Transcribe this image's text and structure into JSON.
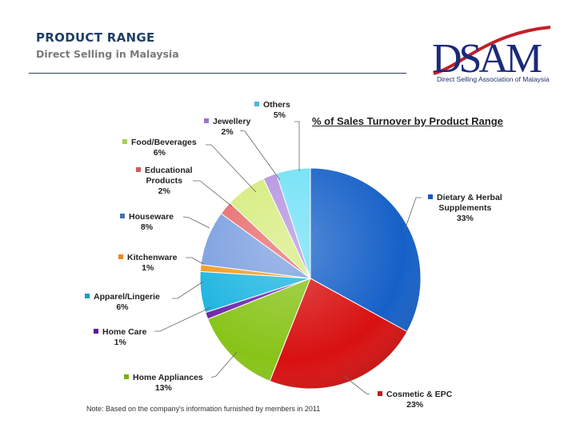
{
  "header": {
    "title": "PRODUCT RANGE",
    "subtitle": "Direct Selling in Malaysia"
  },
  "logo": {
    "text": "DSAM",
    "caption": "Direct Selling Association of Malaysia"
  },
  "note": "Note: Based on the company's information furnished by members in 2011",
  "chart_data": {
    "type": "pie",
    "title": "% of Sales Turnover by Product Range",
    "start_angle_deg": 0,
    "direction": "clockwise",
    "slices": [
      {
        "label": "Dietary & Herbal Supplements",
        "value": 33,
        "display": "33%",
        "color": "#1560c8"
      },
      {
        "label": "Cosmetic & EPC",
        "value": 23,
        "display": "23%",
        "color": "#d81010"
      },
      {
        "label": "Home Appliances",
        "value": 13,
        "display": "13%",
        "color": "#88c418"
      },
      {
        "label": "Home Care",
        "value": 1,
        "display": "1%",
        "color": "#6a24a8"
      },
      {
        "label": "Apparel/Lingerie",
        "value": 6,
        "display": "6%",
        "color": "#1ab4e0"
      },
      {
        "label": "Kitchenware",
        "value": 1,
        "display": "1%",
        "color": "#f39a1c"
      },
      {
        "label": "Houseware",
        "value": 8,
        "display": "8%",
        "color": "#7a9ee0"
      },
      {
        "label": "Educational Products",
        "value": 2,
        "display": "2%",
        "color": "#e86a6a"
      },
      {
        "label": "Food/Beverages",
        "value": 6,
        "display": "6%",
        "color": "#d4ec7a"
      },
      {
        "label": "Jewellery",
        "value": 2,
        "display": "2%",
        "color": "#b490e0"
      },
      {
        "label": "Others",
        "value": 5,
        "display": "5%",
        "color": "#6ee0f6"
      }
    ],
    "legend_position": "callout labels around pie"
  },
  "labels": {
    "others": {
      "name": "Others",
      "pct": "5%"
    },
    "jewellery": {
      "name": "Jewellery",
      "pct": "2%"
    },
    "food": {
      "name": "Food/Beverages",
      "pct": "6%"
    },
    "educational": {
      "name1": "Educational",
      "name2": "Products",
      "pct": "2%"
    },
    "houseware": {
      "name": "Houseware",
      "pct": "8%"
    },
    "kitchenware": {
      "name": "Kitchenware",
      "pct": "1%"
    },
    "apparel": {
      "name": "Apparel/Lingerie",
      "pct": "6%"
    },
    "homecare": {
      "name": "Home Care",
      "pct": "1%"
    },
    "appliances": {
      "name": "Home Appliances",
      "pct": "13%"
    },
    "cosmetic": {
      "name": "Cosmetic & EPC",
      "pct": "23%"
    },
    "dietary": {
      "name1": "Dietary & Herbal",
      "name2": "Supplements",
      "pct": "33%"
    }
  }
}
